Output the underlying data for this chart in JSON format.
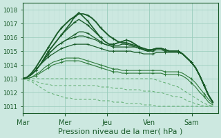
{
  "background_color": "#cce8e0",
  "plot_bg_color": "#cce8e0",
  "grid_color_major": "#99ccbb",
  "grid_color_minor": "#bbddd4",
  "line_color_dark": "#1a5c2a",
  "line_color_medium": "#2d7a3a",
  "line_color_light": "#5aaa6a",
  "xlabel": "Pression niveau de la mer( hPa )",
  "xlabel_fontsize": 8,
  "tick_labels": [
    "Mar",
    "Mer",
    "Jeu",
    "Ven",
    "Sam"
  ],
  "ylim": [
    1010.5,
    1018.5
  ],
  "yticks": [
    1011,
    1012,
    1013,
    1014,
    1015,
    1016,
    1017,
    1018
  ],
  "series": [
    {
      "y": [
        1013.0,
        1013.1,
        1013.3,
        1013.6,
        1014.0,
        1014.5,
        1015.0,
        1015.4,
        1015.8,
        1016.2,
        1016.6,
        1017.0,
        1017.5,
        1017.8,
        1017.5,
        1017.2,
        1016.8,
        1016.4,
        1016.0,
        1015.7,
        1015.5,
        1015.5,
        1015.6,
        1015.7,
        1015.8,
        1015.7,
        1015.5,
        1015.3,
        1015.1,
        1015.0,
        1015.1,
        1015.2,
        1015.2,
        1015.1,
        1015.0,
        1015.0,
        1015.0,
        1014.8,
        1014.5,
        1014.2,
        1013.8,
        1013.2,
        1012.5,
        1011.8,
        1011.3
      ],
      "lw": 1.2,
      "color": "dark",
      "marker": true
    },
    {
      "y": [
        1013.0,
        1013.1,
        1013.3,
        1013.6,
        1014.0,
        1014.5,
        1015.0,
        1015.4,
        1015.8,
        1016.2,
        1016.5,
        1016.8,
        1017.1,
        1017.3,
        1017.1,
        1016.9,
        1016.6,
        1016.3,
        1016.0,
        1015.7,
        1015.5,
        1015.5,
        1015.6,
        1015.7,
        1015.8,
        1015.7,
        1015.5,
        1015.3,
        1015.1,
        1015.0,
        1015.1,
        1015.2,
        1015.2,
        1015.1,
        1015.0,
        1015.0,
        1015.0,
        1014.8,
        1014.5,
        1014.2,
        1013.8,
        1013.2,
        1012.5,
        1011.8,
        1011.3
      ],
      "lw": 1.0,
      "color": "dark",
      "marker": true
    },
    {
      "y": [
        1013.0,
        1013.1,
        1013.3,
        1013.6,
        1014.0,
        1014.4,
        1014.8,
        1015.1,
        1015.4,
        1015.6,
        1015.8,
        1016.0,
        1016.2,
        1016.4,
        1016.4,
        1016.3,
        1016.1,
        1015.9,
        1015.7,
        1015.5,
        1015.4,
        1015.4,
        1015.4,
        1015.5,
        1015.5,
        1015.4,
        1015.3,
        1015.2,
        1015.1,
        1015.0,
        1015.1,
        1015.2,
        1015.2,
        1015.1,
        1015.0,
        1015.0,
        1015.0,
        1014.8,
        1014.5,
        1014.2,
        1013.8,
        1013.2,
        1012.5,
        1011.8,
        1011.3
      ],
      "lw": 0.9,
      "color": "dark",
      "marker": true
    },
    {
      "y": [
        1013.0,
        1013.1,
        1013.3,
        1013.6,
        1014.0,
        1014.4,
        1014.8,
        1015.1,
        1015.4,
        1015.6,
        1015.8,
        1015.9,
        1016.0,
        1016.1,
        1016.1,
        1016.0,
        1015.9,
        1015.8,
        1015.6,
        1015.5,
        1015.4,
        1015.3,
        1015.3,
        1015.3,
        1015.3,
        1015.3,
        1015.3,
        1015.2,
        1015.1,
        1015.0,
        1015.0,
        1015.1,
        1015.1,
        1015.0,
        1015.0,
        1015.0,
        1015.0,
        1014.8,
        1014.5,
        1014.2,
        1013.8,
        1013.2,
        1012.5,
        1011.8,
        1011.3
      ],
      "lw": 0.9,
      "color": "dark",
      "marker": true
    },
    {
      "y": [
        1013.0,
        1013.1,
        1013.3,
        1013.6,
        1014.0,
        1014.3,
        1014.6,
        1014.8,
        1015.0,
        1015.2,
        1015.3,
        1015.4,
        1015.5,
        1015.5,
        1015.5,
        1015.5,
        1015.4,
        1015.3,
        1015.2,
        1015.1,
        1015.0,
        1015.0,
        1015.0,
        1015.0,
        1015.0,
        1015.0,
        1014.9,
        1014.9,
        1014.8,
        1014.8,
        1014.8,
        1014.9,
        1014.9,
        1014.9,
        1014.9,
        1014.9,
        1014.9,
        1014.8,
        1014.5,
        1014.2,
        1013.8,
        1013.2,
        1012.5,
        1011.8,
        1011.3
      ],
      "lw": 0.9,
      "color": "dark",
      "marker": true
    },
    {
      "y": [
        1013.0,
        1013.0,
        1013.1,
        1013.3,
        1013.5,
        1013.8,
        1014.0,
        1014.2,
        1014.3,
        1014.4,
        1014.5,
        1014.5,
        1014.5,
        1014.5,
        1014.4,
        1014.3,
        1014.2,
        1014.1,
        1014.0,
        1013.9,
        1013.8,
        1013.7,
        1013.7,
        1013.6,
        1013.6,
        1013.6,
        1013.6,
        1013.6,
        1013.6,
        1013.6,
        1013.6,
        1013.6,
        1013.6,
        1013.5,
        1013.5,
        1013.5,
        1013.5,
        1013.4,
        1013.2,
        1013.0,
        1012.7,
        1012.3,
        1011.9,
        1011.5,
        1011.2
      ],
      "lw": 0.8,
      "color": "medium",
      "marker": true
    },
    {
      "y": [
        1013.0,
        1013.0,
        1013.1,
        1013.2,
        1013.4,
        1013.6,
        1013.8,
        1014.0,
        1014.1,
        1014.2,
        1014.3,
        1014.3,
        1014.3,
        1014.3,
        1014.2,
        1014.1,
        1014.0,
        1013.9,
        1013.8,
        1013.7,
        1013.6,
        1013.5,
        1013.5,
        1013.4,
        1013.4,
        1013.4,
        1013.4,
        1013.4,
        1013.4,
        1013.4,
        1013.4,
        1013.4,
        1013.4,
        1013.3,
        1013.3,
        1013.3,
        1013.3,
        1013.2,
        1013.0,
        1012.7,
        1012.4,
        1012.0,
        1011.7,
        1011.3,
        1011.1
      ],
      "lw": 0.8,
      "color": "medium",
      "marker": true
    },
    {
      "y": [
        1013.0,
        1013.0,
        1013.0,
        1013.0,
        1013.0,
        1013.0,
        1013.0,
        1013.0,
        1013.0,
        1013.0,
        1013.0,
        1013.0,
        1013.0,
        1013.0,
        1013.0,
        1013.0,
        1013.0,
        1013.0,
        1013.0,
        1013.0,
        1013.0,
        1013.0,
        1013.0,
        1013.0,
        1013.0,
        1013.0,
        1013.0,
        1013.0,
        1013.0,
        1013.0,
        1013.0,
        1012.9,
        1012.8,
        1012.7,
        1012.6,
        1012.5,
        1012.4,
        1012.2,
        1012.0,
        1011.8,
        1011.6,
        1011.4,
        1011.2,
        1011.1,
        1011.0
      ],
      "lw": 0.7,
      "color": "light",
      "marker": false
    },
    {
      "y": [
        1013.0,
        1013.0,
        1012.9,
        1012.8,
        1012.7,
        1012.6,
        1012.6,
        1012.5,
        1012.5,
        1012.5,
        1012.5,
        1012.5,
        1012.5,
        1012.5,
        1012.5,
        1012.5,
        1012.5,
        1012.5,
        1012.4,
        1012.4,
        1012.4,
        1012.3,
        1012.3,
        1012.3,
        1012.2,
        1012.2,
        1012.2,
        1012.2,
        1012.1,
        1012.1,
        1012.1,
        1012.0,
        1012.0,
        1011.9,
        1011.8,
        1011.7,
        1011.7,
        1011.6,
        1011.4,
        1011.3,
        1011.2,
        1011.1,
        1011.0,
        1011.0,
        1011.0
      ],
      "lw": 0.7,
      "color": "light",
      "marker": false
    },
    {
      "y": [
        1013.0,
        1012.9,
        1012.8,
        1012.6,
        1012.4,
        1012.2,
        1012.0,
        1011.9,
        1011.8,
        1011.7,
        1011.6,
        1011.6,
        1011.5,
        1011.5,
        1011.5,
        1011.5,
        1011.5,
        1011.5,
        1011.4,
        1011.4,
        1011.4,
        1011.3,
        1011.3,
        1011.3,
        1011.2,
        1011.2,
        1011.2,
        1011.2,
        1011.1,
        1011.1,
        1011.1,
        1011.0,
        1011.0,
        1011.0,
        1011.0,
        1011.0,
        1011.0,
        1011.0,
        1011.0,
        1011.0,
        1011.0,
        1011.0,
        1011.0,
        1011.0,
        1011.0
      ],
      "lw": 0.7,
      "color": "light",
      "marker": false
    },
    {
      "y": [
        1013.0,
        1013.1,
        1013.4,
        1013.8,
        1014.3,
        1014.8,
        1015.3,
        1015.8,
        1016.3,
        1016.7,
        1017.0,
        1017.3,
        1017.5,
        1017.7,
        1017.7,
        1017.6,
        1017.4,
        1017.1,
        1016.7,
        1016.4,
        1016.1,
        1015.9,
        1015.7,
        1015.6,
        1015.6,
        1015.5,
        1015.4,
        1015.3,
        1015.2,
        1015.1,
        1015.1,
        1015.2,
        1015.2,
        1015.1,
        1015.0,
        1015.0,
        1015.0,
        1014.8,
        1014.5,
        1014.2,
        1013.8,
        1013.2,
        1012.5,
        1011.8,
        1011.3
      ],
      "lw": 1.4,
      "color": "dark",
      "marker": true
    }
  ]
}
